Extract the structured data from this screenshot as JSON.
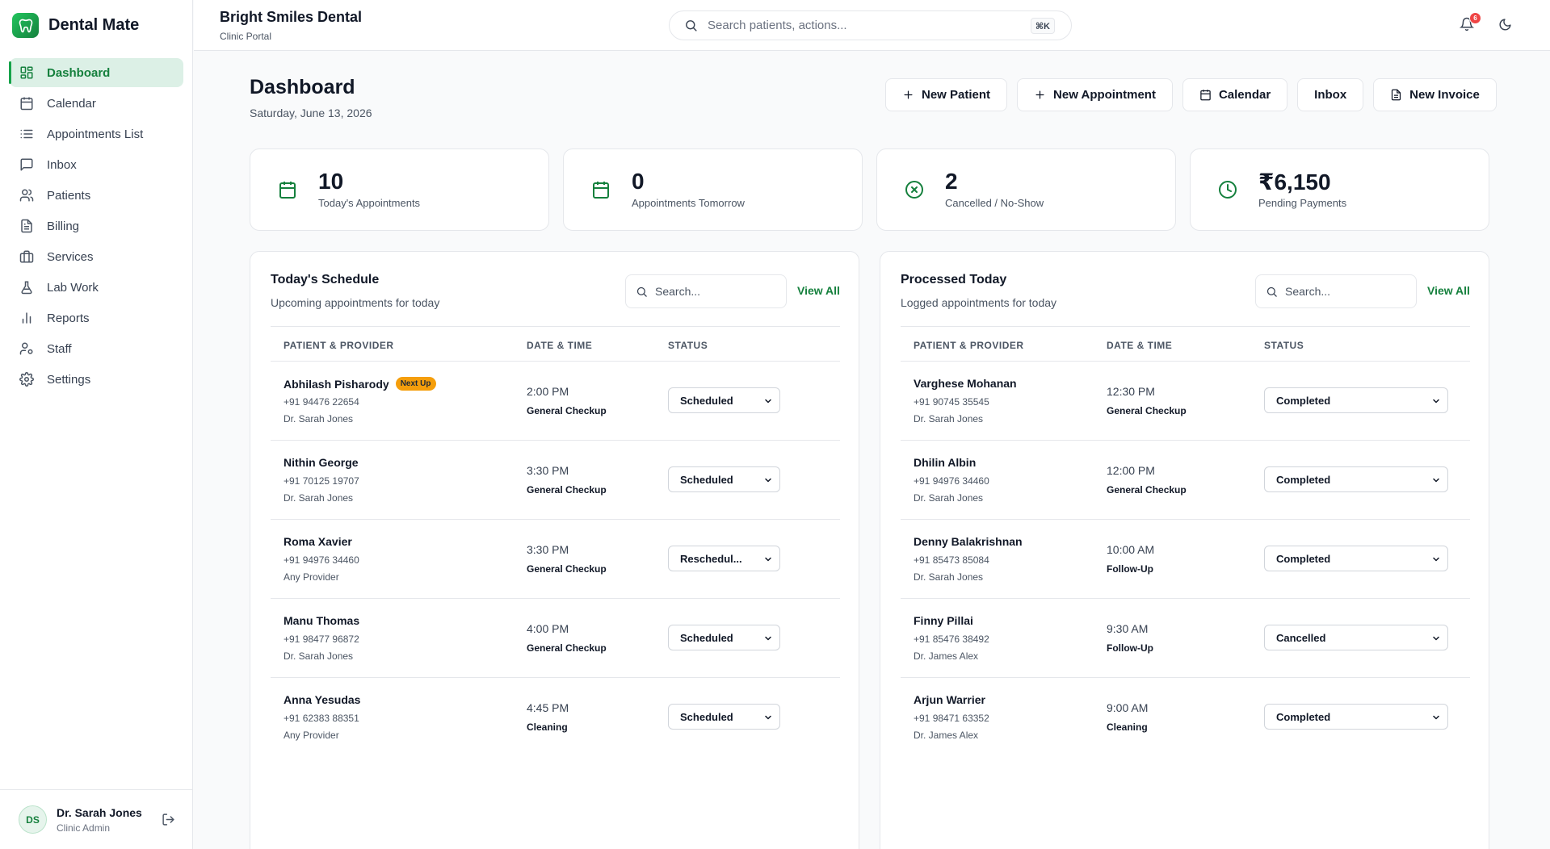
{
  "brand": {
    "name": "Dental Mate",
    "logo_icon": "tooth-icon",
    "accent": "#16a34a"
  },
  "sidebar": {
    "items": [
      {
        "label": "Dashboard",
        "icon": "grid-icon",
        "active": true
      },
      {
        "label": "Calendar",
        "icon": "calendar-icon"
      },
      {
        "label": "Appointments List",
        "icon": "list-icon"
      },
      {
        "label": "Inbox",
        "icon": "message-icon"
      },
      {
        "label": "Patients",
        "icon": "users-icon"
      },
      {
        "label": "Billing",
        "icon": "receipt-icon"
      },
      {
        "label": "Services",
        "icon": "briefcase-icon"
      },
      {
        "label": "Lab Work",
        "icon": "flask-icon"
      },
      {
        "label": "Reports",
        "icon": "bar-chart-icon"
      },
      {
        "label": "Staff",
        "icon": "user-cog-icon"
      },
      {
        "label": "Settings",
        "icon": "gear-icon"
      }
    ]
  },
  "user": {
    "initials": "DS",
    "name": "Dr. Sarah Jones",
    "role": "Clinic Admin"
  },
  "header": {
    "clinic_name": "Bright Smiles Dental",
    "clinic_sub": "Clinic Portal",
    "search_placeholder": "Search patients, actions...",
    "shortcut": "⌘K",
    "notifications": "6"
  },
  "main": {
    "title": "Dashboard",
    "date": "Saturday, June 13, 2026",
    "actions": [
      {
        "label": "New Patient",
        "icon": "plus-icon"
      },
      {
        "label": "New Appointment",
        "icon": "plus-icon"
      },
      {
        "label": "Calendar",
        "icon": "calendar-icon"
      },
      {
        "label": "Inbox",
        "icon": ""
      },
      {
        "label": "New Invoice",
        "icon": "file-icon"
      }
    ],
    "stats": [
      {
        "value": "10",
        "label": "Today's Appointments",
        "icon": "calendar-icon"
      },
      {
        "value": "0",
        "label": "Appointments Tomorrow",
        "icon": "calendar-icon"
      },
      {
        "value": "2",
        "label": "Cancelled / No-Show",
        "icon": "x-circle-icon"
      },
      {
        "value": "₹6,150",
        "label": "Pending Payments",
        "icon": "clock-icon"
      }
    ]
  },
  "schedule": {
    "title": "Today's Schedule",
    "subtitle": "Upcoming appointments for today",
    "search_placeholder": "Search...",
    "view_all": "View All",
    "columns": [
      "PATIENT & PROVIDER",
      "DATE & TIME",
      "STATUS"
    ],
    "rows": [
      {
        "name": "Abhilash Pisharody",
        "tag": "Next Up",
        "phone": "+91 94476 22654",
        "provider": "Dr. Sarah Jones",
        "time": "2:00 PM",
        "type": "General Checkup",
        "status": "Scheduled"
      },
      {
        "name": "Nithin George",
        "tag": "",
        "phone": "+91 70125 19707",
        "provider": "Dr. Sarah Jones",
        "time": "3:30 PM",
        "type": "General Checkup",
        "status": "Scheduled"
      },
      {
        "name": "Roma Xavier",
        "tag": "",
        "phone": "+91 94976 34460",
        "provider": "Any Provider",
        "time": "3:30 PM",
        "type": "General Checkup",
        "status": "Reschedul..."
      },
      {
        "name": "Manu Thomas",
        "tag": "",
        "phone": "+91 98477 96872",
        "provider": "Dr. Sarah Jones",
        "time": "4:00 PM",
        "type": "General Checkup",
        "status": "Scheduled"
      },
      {
        "name": "Anna Yesudas",
        "tag": "",
        "phone": "+91 62383 88351",
        "provider": "Any Provider",
        "time": "4:45 PM",
        "type": "Cleaning",
        "status": "Scheduled"
      }
    ]
  },
  "processed": {
    "title": "Processed Today",
    "subtitle": "Logged appointments for today",
    "search_placeholder": "Search...",
    "view_all": "View All",
    "columns": [
      "PATIENT & PROVIDER",
      "DATE & TIME",
      "STATUS"
    ],
    "rows": [
      {
        "name": "Varghese Mohanan",
        "tag": "",
        "phone": "+91 90745 35545",
        "provider": "Dr. Sarah Jones",
        "time": "12:30 PM",
        "type": "General Checkup",
        "status": "Completed"
      },
      {
        "name": "Dhilin Albin",
        "tag": "",
        "phone": "+91 94976 34460",
        "provider": "Dr. Sarah Jones",
        "time": "12:00 PM",
        "type": "General Checkup",
        "status": "Completed"
      },
      {
        "name": "Denny Balakrishnan",
        "tag": "",
        "phone": "+91 85473 85084",
        "provider": "Dr. Sarah Jones",
        "time": "10:00 AM",
        "type": "Follow-Up",
        "status": "Completed"
      },
      {
        "name": "Finny Pillai",
        "tag": "",
        "phone": "+91 85476 38492",
        "provider": "Dr. James Alex",
        "time": "9:30 AM",
        "type": "Follow-Up",
        "status": "Cancelled"
      },
      {
        "name": "Arjun Warrier",
        "tag": "",
        "phone": "+91 98471 63352",
        "provider": "Dr. James Alex",
        "time": "9:00 AM",
        "type": "Cleaning",
        "status": "Completed"
      }
    ]
  }
}
